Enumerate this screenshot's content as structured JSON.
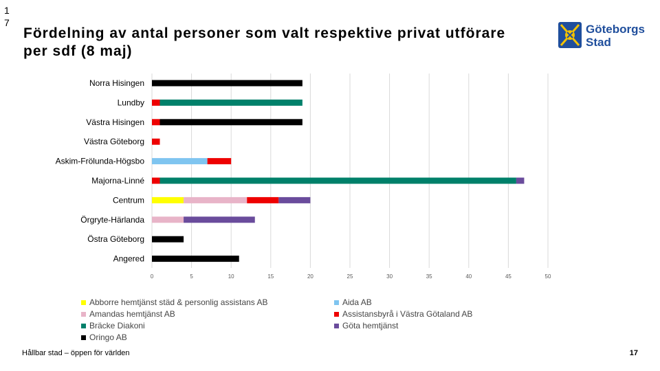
{
  "slide": {
    "corner_number": "17",
    "title": "Fördelning av antal personer som valt respektive privat utförare per sdf (8 maj)",
    "footer": "Hållbar stad – öppen för världen",
    "page_number": "17",
    "logo_line1": "Göteborgs",
    "logo_line2": "Stad"
  },
  "chart_data": {
    "type": "bar",
    "orientation": "horizontal",
    "stacked": true,
    "categories": [
      "Norra Hisingen",
      "Lundby",
      "Västra Hisingen",
      "Västra Göteborg",
      "Askim-Frölunda-Högsbo",
      "Majorna-Linné",
      "Centrum",
      "Örgryte-Härlanda",
      "Östra Göteborg",
      "Angered"
    ],
    "xlim": [
      0,
      50
    ],
    "xticks": [
      0,
      5,
      10,
      15,
      20,
      25,
      30,
      35,
      40,
      45,
      50
    ],
    "grid": true,
    "legend_position": "bottom",
    "series": [
      {
        "name": "Abborre hemtjänst städ & personlig assistans AB",
        "color": "#ffff00",
        "values": [
          0,
          0,
          0,
          0,
          0,
          0,
          4,
          0,
          0,
          0
        ]
      },
      {
        "name": "Aida AB",
        "color": "#7fc5f0",
        "values": [
          0,
          0,
          0,
          0,
          7,
          0,
          0,
          0,
          0,
          0
        ]
      },
      {
        "name": "Amandas hemtjänst AB",
        "color": "#e8b4c8",
        "values": [
          0,
          0,
          0,
          0,
          0,
          0,
          8,
          4,
          0,
          0
        ]
      },
      {
        "name": "Assistansbyrå i Västra Götaland AB",
        "color": "#ee0000",
        "values": [
          0,
          1,
          1,
          1,
          3,
          1,
          4,
          0,
          0,
          0
        ]
      },
      {
        "name": "Bräcke Diakoni",
        "color": "#00806a",
        "values": [
          0,
          18,
          0,
          0,
          0,
          45,
          0,
          0,
          0,
          0
        ]
      },
      {
        "name": "Göta hemtjänst",
        "color": "#6a4c9c",
        "values": [
          0,
          0,
          0,
          0,
          0,
          1,
          4,
          9,
          0,
          0
        ]
      },
      {
        "name": "Oringo AB",
        "color": "#000000",
        "values": [
          19,
          0,
          18,
          0,
          0,
          0,
          0,
          0,
          4,
          11
        ]
      }
    ]
  }
}
